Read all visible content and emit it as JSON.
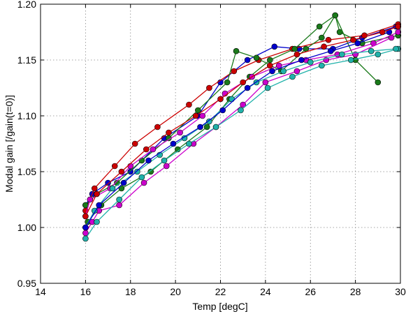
{
  "chart_data": {
    "type": "line",
    "xlabel": "Temp  [degC]",
    "ylabel": "Modal gain   [/gain(t=0)]",
    "xlim": [
      14,
      30
    ],
    "ylim": [
      0.95,
      1.2
    ],
    "grid": true,
    "x_ticks": [
      "14",
      "16",
      "18",
      "20",
      "22",
      "24",
      "26",
      "28",
      "30"
    ],
    "y_ticks": [
      "0.95",
      "1.00",
      "1.05",
      "1.10",
      "1.15",
      "1.20"
    ],
    "series": [
      {
        "color": "#0000cc",
        "x": [
          16.0,
          16.3,
          17.0,
          18.0,
          19.5,
          21.0,
          22.0,
          23.2,
          24.4,
          25.5,
          27.0,
          28.3,
          29.8
        ],
        "y": [
          1.02,
          1.03,
          1.04,
          1.05,
          1.08,
          1.1,
          1.13,
          1.15,
          1.162,
          1.16,
          1.16,
          1.17,
          1.18
        ]
      },
      {
        "color": "#cc0000",
        "x": [
          16.0,
          16.4,
          17.3,
          18.2,
          19.2,
          20.6,
          21.5,
          22.6,
          23.7,
          25.2,
          26.8,
          28.4,
          29.9
        ],
        "y": [
          1.015,
          1.035,
          1.055,
          1.075,
          1.09,
          1.11,
          1.125,
          1.14,
          1.15,
          1.16,
          1.168,
          1.172,
          1.182
        ]
      },
      {
        "color": "#1a7a1a",
        "x": [
          16.0,
          16.5,
          17.4,
          18.5,
          19.7,
          21.0,
          22.3,
          22.7,
          23.6,
          24.7,
          25.8,
          26.5,
          27.1,
          27.3,
          28.3,
          29.9
        ],
        "y": [
          1.02,
          1.03,
          1.04,
          1.06,
          1.08,
          1.105,
          1.13,
          1.158,
          1.152,
          1.14,
          1.16,
          1.17,
          1.19,
          1.175,
          1.165,
          1.172
        ]
      },
      {
        "color": "#1a7a1a",
        "x": [
          16.1,
          16.7,
          17.6,
          18.9,
          20.1,
          21.4,
          22.4,
          23.3,
          24.2,
          25.3,
          26.4,
          27.1,
          28.0,
          29.0
        ],
        "y": [
          1.005,
          1.02,
          1.035,
          1.05,
          1.07,
          1.09,
          1.115,
          1.135,
          1.15,
          1.16,
          1.18,
          1.19,
          1.15,
          1.13
        ]
      },
      {
        "color": "#cc00cc",
        "x": [
          16.0,
          16.2,
          17.1,
          18.0,
          19.0,
          20.2,
          21.2,
          22.2,
          23.4,
          24.6,
          25.8,
          27.2,
          28.8,
          29.9
        ],
        "y": [
          1.01,
          1.025,
          1.035,
          1.055,
          1.07,
          1.085,
          1.1,
          1.12,
          1.135,
          1.145,
          1.15,
          1.155,
          1.165,
          1.175
        ]
      },
      {
        "color": "#cc00cc",
        "x": [
          16.0,
          16.3,
          16.6,
          17.5,
          18.6,
          19.6,
          20.8,
          21.8,
          23.0,
          24.0,
          25.4,
          26.7,
          28.0,
          29.6
        ],
        "y": [
          0.995,
          1.005,
          1.015,
          1.02,
          1.04,
          1.055,
          1.075,
          1.09,
          1.11,
          1.13,
          1.14,
          1.15,
          1.155,
          1.17
        ]
      },
      {
        "color": "#20b2aa",
        "x": [
          16.0,
          16.5,
          17.5,
          18.5,
          19.5,
          20.6,
          21.8,
          22.9,
          24.1,
          25.2,
          26.5,
          27.8,
          29.0,
          29.9
        ],
        "y": [
          0.99,
          1.005,
          1.025,
          1.045,
          1.06,
          1.075,
          1.09,
          1.105,
          1.125,
          1.135,
          1.145,
          1.15,
          1.155,
          1.16
        ]
      },
      {
        "color": "#20b2aa",
        "x": [
          16.0,
          16.4,
          17.2,
          18.3,
          19.3,
          20.4,
          21.5,
          22.5,
          23.6,
          24.8,
          26.0,
          27.4,
          28.7,
          29.8
        ],
        "y": [
          1.0,
          1.015,
          1.035,
          1.05,
          1.065,
          1.08,
          1.095,
          1.115,
          1.13,
          1.14,
          1.148,
          1.155,
          1.158,
          1.16
        ]
      },
      {
        "color": "#0000cc",
        "x": [
          16.0,
          16.6,
          17.7,
          18.8,
          19.9,
          21.1,
          22.1,
          23.2,
          24.3,
          25.6,
          26.9,
          28.1,
          29.5
        ],
        "y": [
          1.0,
          1.02,
          1.04,
          1.06,
          1.075,
          1.09,
          1.105,
          1.125,
          1.14,
          1.15,
          1.158,
          1.165,
          1.175
        ]
      },
      {
        "color": "#cc0000",
        "x": [
          16.0,
          16.5,
          17.6,
          18.7,
          19.7,
          20.9,
          22.0,
          23.0,
          24.2,
          25.4,
          26.6,
          27.9,
          29.2,
          29.9
        ],
        "y": [
          1.01,
          1.03,
          1.05,
          1.07,
          1.085,
          1.1,
          1.115,
          1.13,
          1.145,
          1.155,
          1.162,
          1.168,
          1.175,
          1.18
        ]
      }
    ]
  }
}
